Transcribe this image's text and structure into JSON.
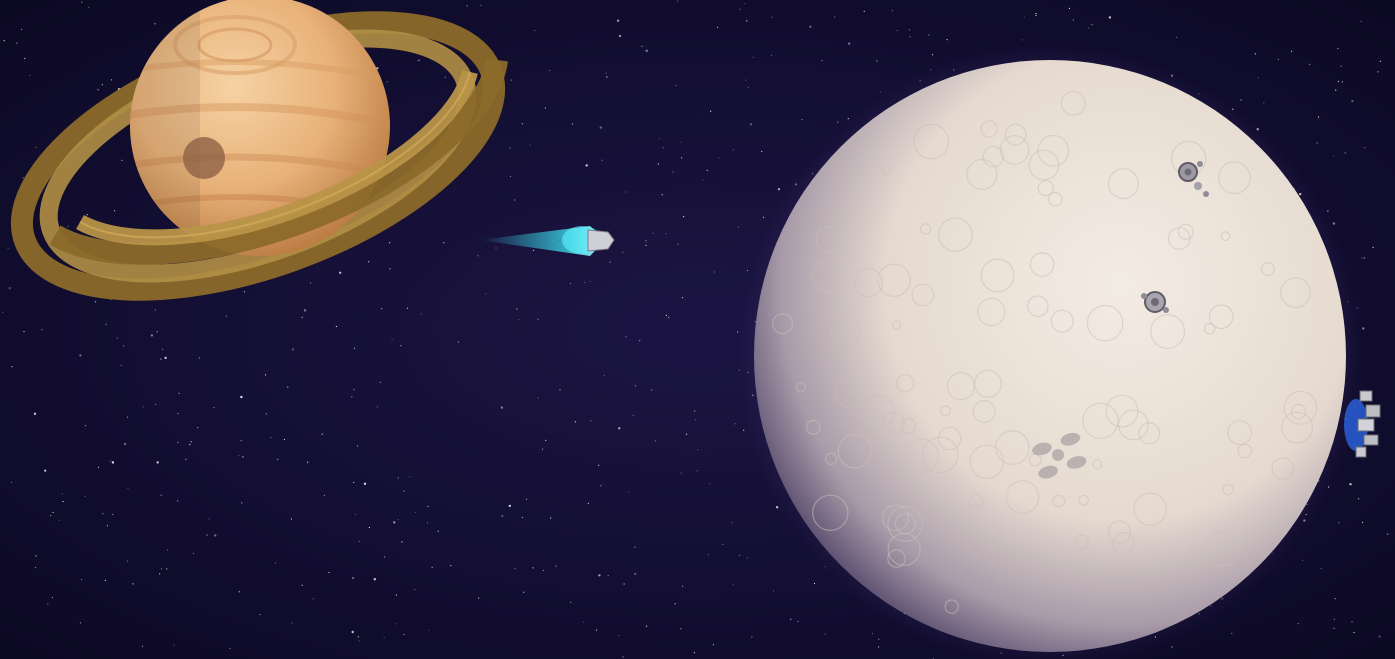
{
  "scene": {
    "description_free": true,
    "colors": {
      "space_dark": "#0b0822",
      "space_mid": "#1c1544",
      "saturn_light": "#f2c590",
      "saturn_dark": "#b9793f",
      "ring": "#a8853a",
      "moon_light": "#efe6dc",
      "moon_shadow": "#2a2046",
      "thruster": "#3ff0ff",
      "station_blue": "#2a5fd8"
    },
    "objects": [
      {
        "name": "ringed-planet",
        "kind": "planet"
      },
      {
        "name": "cratered-moon",
        "kind": "moon"
      },
      {
        "name": "spaceship",
        "kind": "ship"
      },
      {
        "name": "space-station",
        "kind": "station"
      },
      {
        "name": "moon-base",
        "kind": "base"
      }
    ]
  }
}
